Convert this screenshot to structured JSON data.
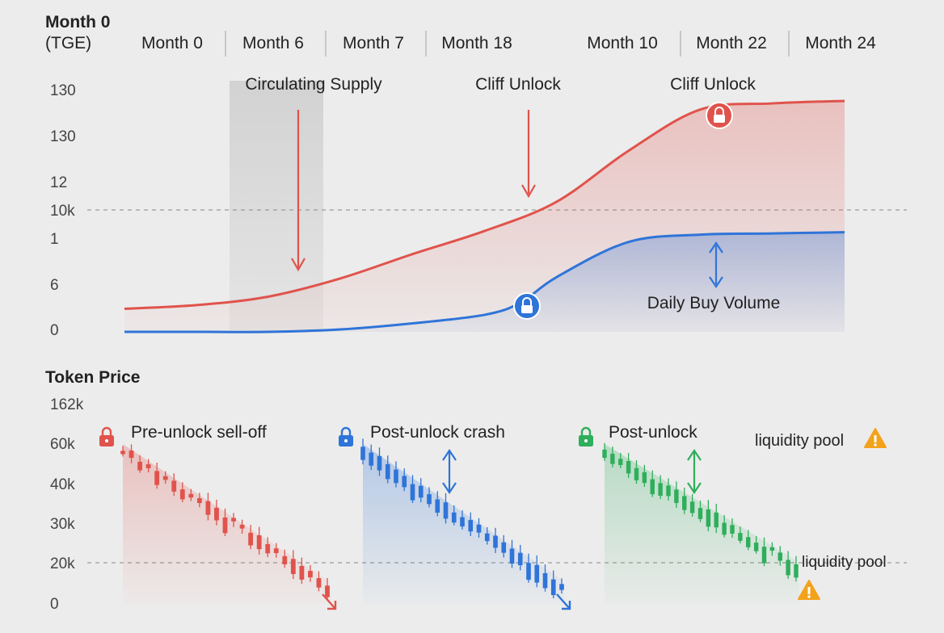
{
  "header": {
    "corner_label_line1": "Month 0",
    "corner_label_line2": "(TGE)",
    "months": [
      "Month 0",
      "Month 6",
      "Month 7",
      "Month 18",
      "Month 10",
      "Month 22",
      "Month 24"
    ]
  },
  "colors": {
    "background": "#ececec",
    "red": "#e0534c",
    "blue": "#2f74d8",
    "green": "#2fae5b",
    "warning": "#f3a21a",
    "grid_dashed": "#9a9a9a",
    "text": "#222222",
    "axis_text": "#444444"
  },
  "chart_data": [
    {
      "type": "area",
      "yticks": [
        "130",
        "130",
        "12",
        "10k",
        "1",
        "6",
        "0"
      ],
      "reference_line_at_tick": "10k",
      "grid": false,
      "series": [
        {
          "name": "",
          "color": "#e0534c",
          "x": [
            0,
            0.1,
            0.2,
            0.3,
            0.4,
            0.5,
            0.6,
            0.7,
            0.8,
            0.9,
            1.0
          ],
          "values": [
            0.095,
            0.11,
            0.145,
            0.22,
            0.32,
            0.415,
            0.535,
            0.745,
            0.915,
            0.94,
            0.95
          ]
        },
        {
          "name": "",
          "color": "#2f74d8",
          "x": [
            0,
            0.1,
            0.2,
            0.3,
            0.4,
            0.5,
            0.55,
            0.6,
            0.7,
            0.8,
            0.9,
            1.0
          ],
          "values": [
            0.0,
            0.0,
            0.0,
            0.01,
            0.035,
            0.07,
            0.12,
            0.225,
            0.37,
            0.4,
            0.405,
            0.41
          ]
        }
      ],
      "annotations": [
        {
          "text": "Circulating Supply",
          "icon": "down-arrow-icon",
          "color": "#e0534c"
        },
        {
          "text": "Cliff Unlock",
          "icon": "down-arrow-icon",
          "color": "#e0534c"
        },
        {
          "text": "Cliff Unlock",
          "icon": "lock-icon",
          "color": "#e0534c"
        },
        {
          "text": "",
          "icon": "lock-icon",
          "color": "#2f74d8"
        },
        {
          "text": "Daily Buy Volume",
          "icon": "double-arrow-icon",
          "color": "#2f74d8"
        }
      ],
      "shaded_band": "gray"
    },
    {
      "type": "candlestick",
      "title": "Token Price",
      "yticks": [
        "162k",
        "60k",
        "40k",
        "30k",
        "20k",
        "0"
      ],
      "reference_line_at_tick": "20k",
      "grid": false,
      "groups": [
        {
          "label": "Pre-unlock sell-off",
          "color": "#e0534c",
          "trend_start": 0.96,
          "trend_end": 0.12,
          "candles": 25
        },
        {
          "label": "Post-unlock crash",
          "color": "#2f74d8",
          "trend_start": 0.96,
          "trend_end": 0.12,
          "candles": 25
        },
        {
          "label": "Post-unlock",
          "color": "#2fae5b",
          "trend_start": 0.96,
          "trend_end": 0.24,
          "candles": 25
        }
      ],
      "side_labels": [
        "liquidity pool",
        "liquidity pool"
      ]
    }
  ]
}
